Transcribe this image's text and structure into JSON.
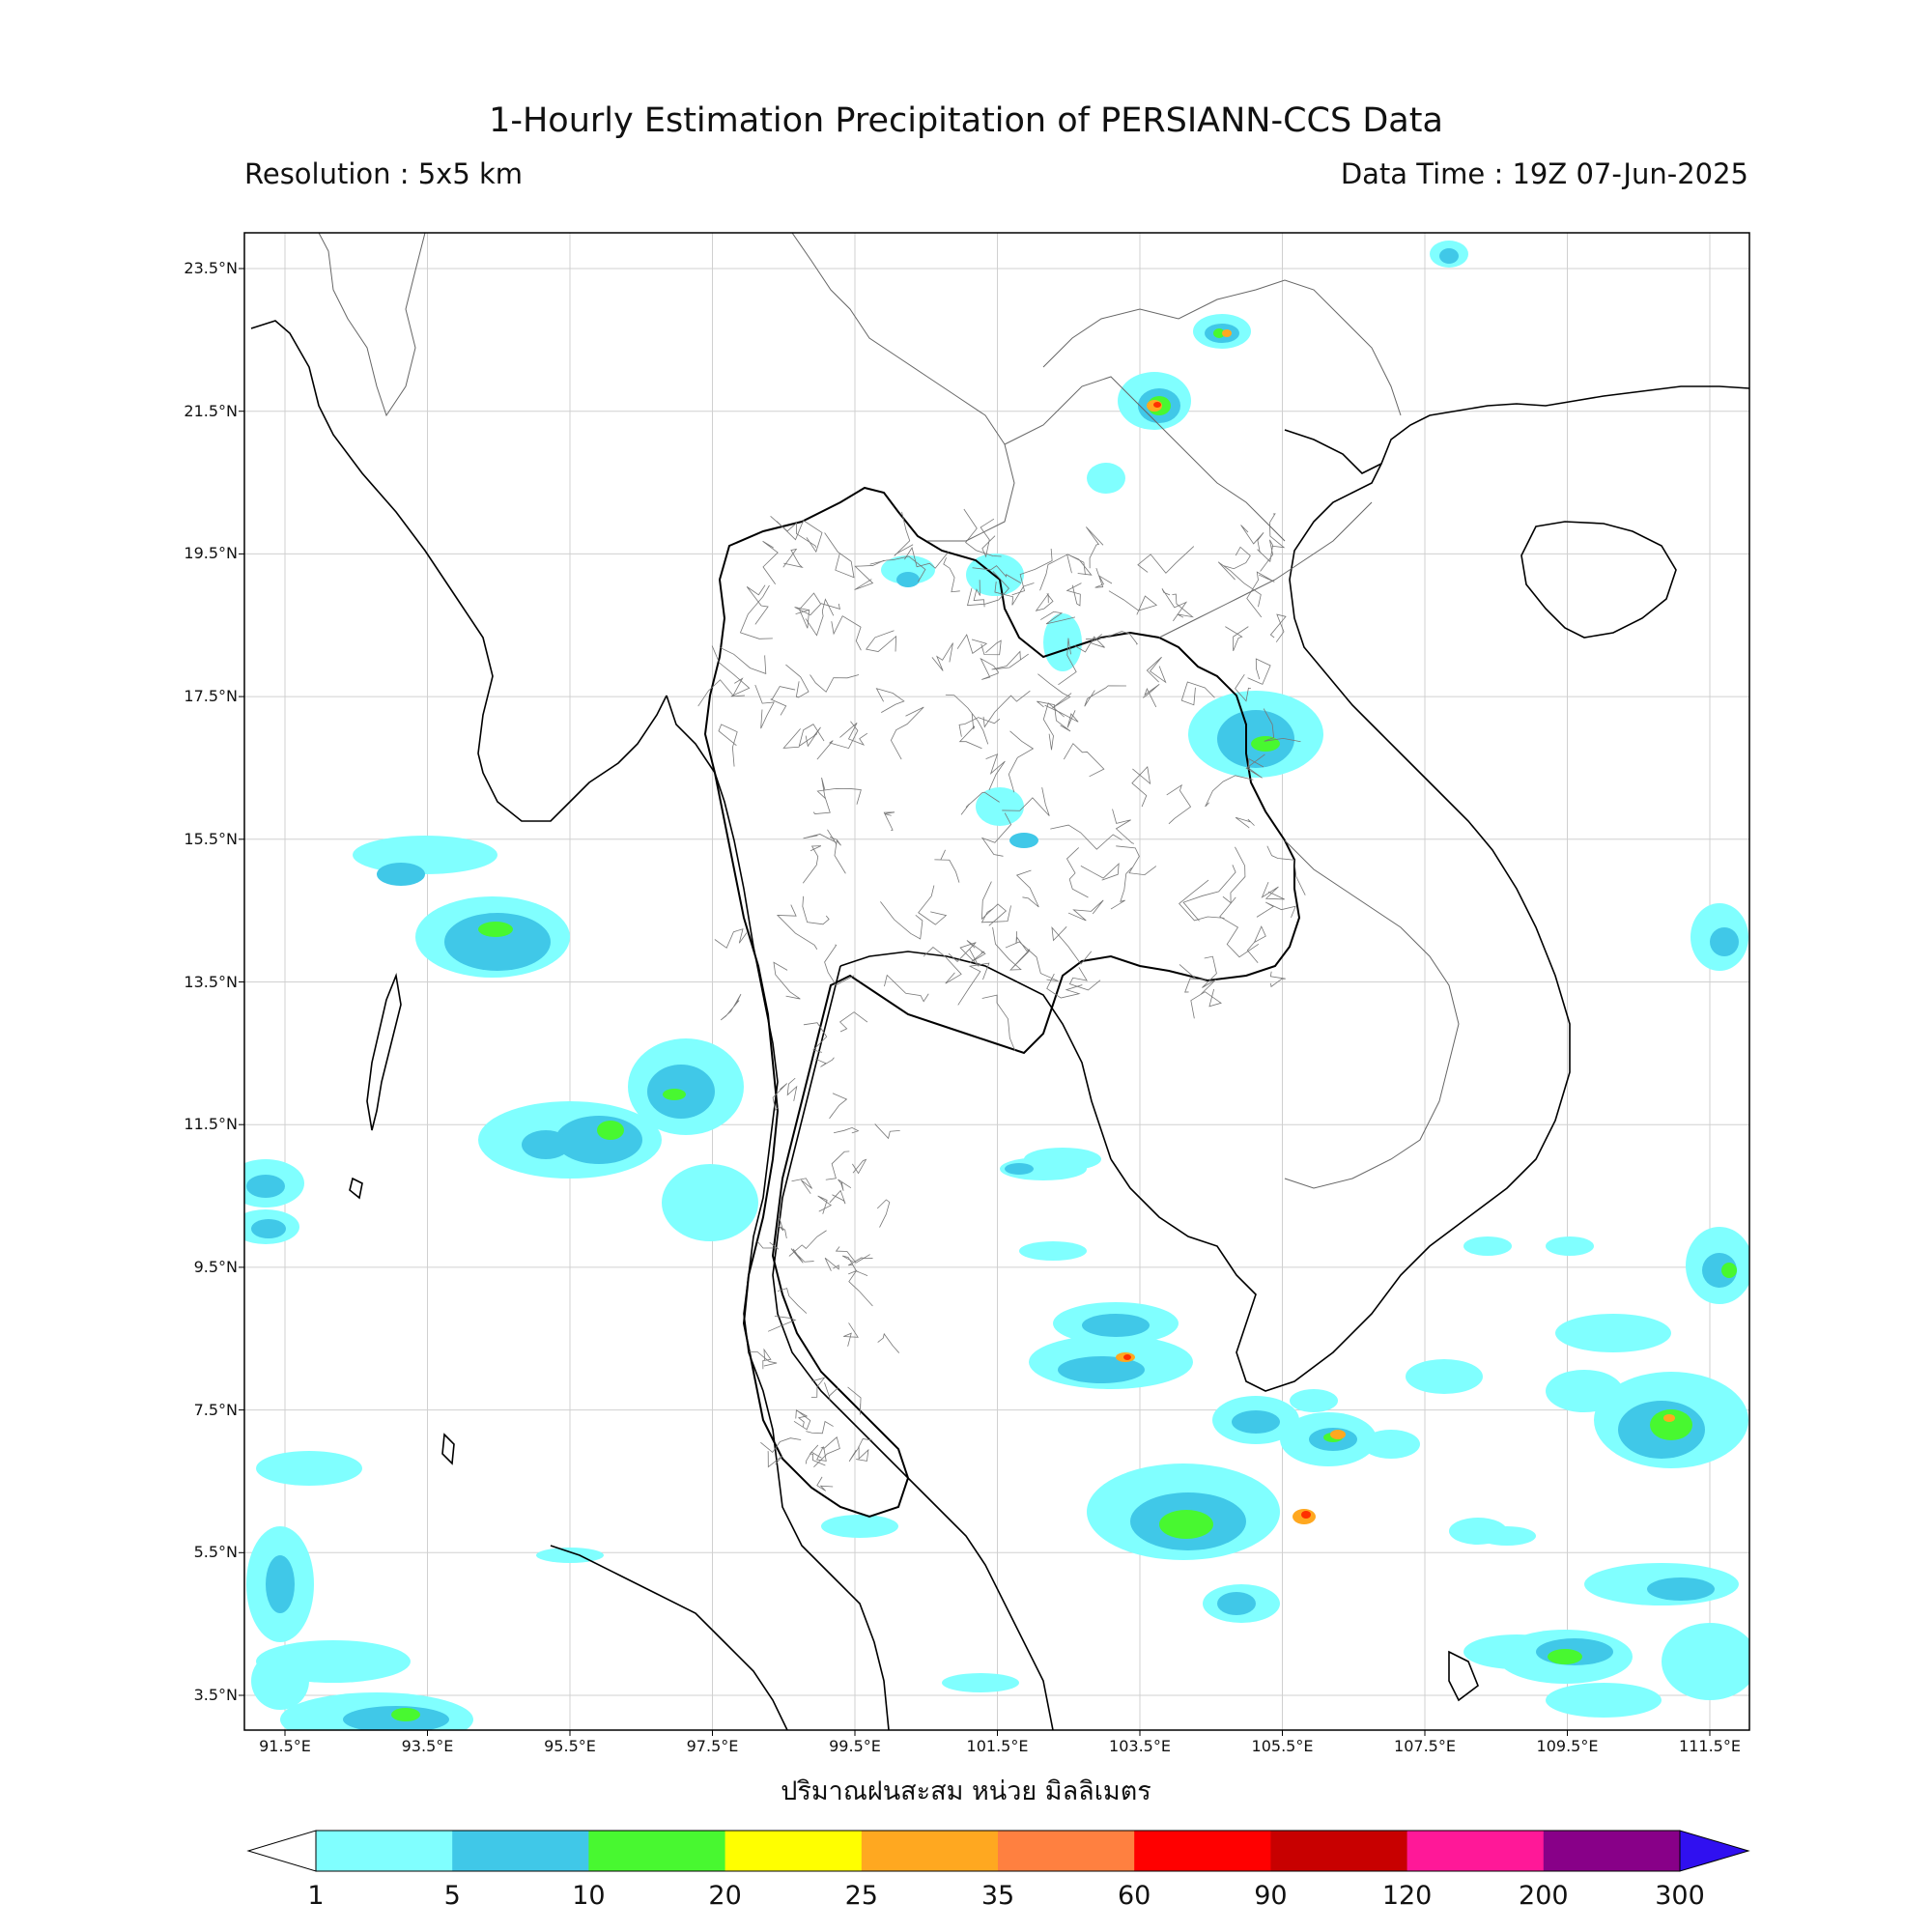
{
  "header": {
    "title": "1-Hourly Estimation Precipitation of PERSIANN-CCS Data",
    "resolution": "Resolution : 5x5 km",
    "data_time": "Data Time : 19Z 07-Jun-2025"
  },
  "axes": {
    "lat_ticks": [
      "23.5°N",
      "21.5°N",
      "19.5°N",
      "17.5°N",
      "15.5°N",
      "13.5°N",
      "11.5°N",
      "9.5°N",
      "7.5°N",
      "5.5°N",
      "3.5°N"
    ],
    "lon_ticks": [
      "91.5°E",
      "93.5°E",
      "95.5°E",
      "97.5°E",
      "99.5°E",
      "101.5°E",
      "103.5°E",
      "105.5°E",
      "107.5°E",
      "109.5°E",
      "111.5°E"
    ]
  },
  "caption": "ปริมาณฝนสะสม หน่วย มิลลิเมตร",
  "colorbar": {
    "levels": [
      "1",
      "5",
      "10",
      "20",
      "25",
      "35",
      "60",
      "90",
      "120",
      "200",
      "300"
    ],
    "colors": [
      "#80ffff",
      "#40c8e8",
      "#48f830",
      "#ffff00",
      "#ffa820",
      "#ff8040",
      "#ff0000",
      "#c80000",
      "#ff1898",
      "#880088"
    ],
    "over_color": "#3010f0",
    "under_color": "#ffffff"
  },
  "map_colors": {
    "light_rain": "#80ffff",
    "moderate_rain": "#40c8e8",
    "heavy_rain": "#48f830",
    "very_heavy_rain": "#ffa820",
    "extreme_rain": "#ff3000",
    "coastline": "#000000",
    "province_border": "#555555",
    "gridline": "#d0d0d0"
  }
}
